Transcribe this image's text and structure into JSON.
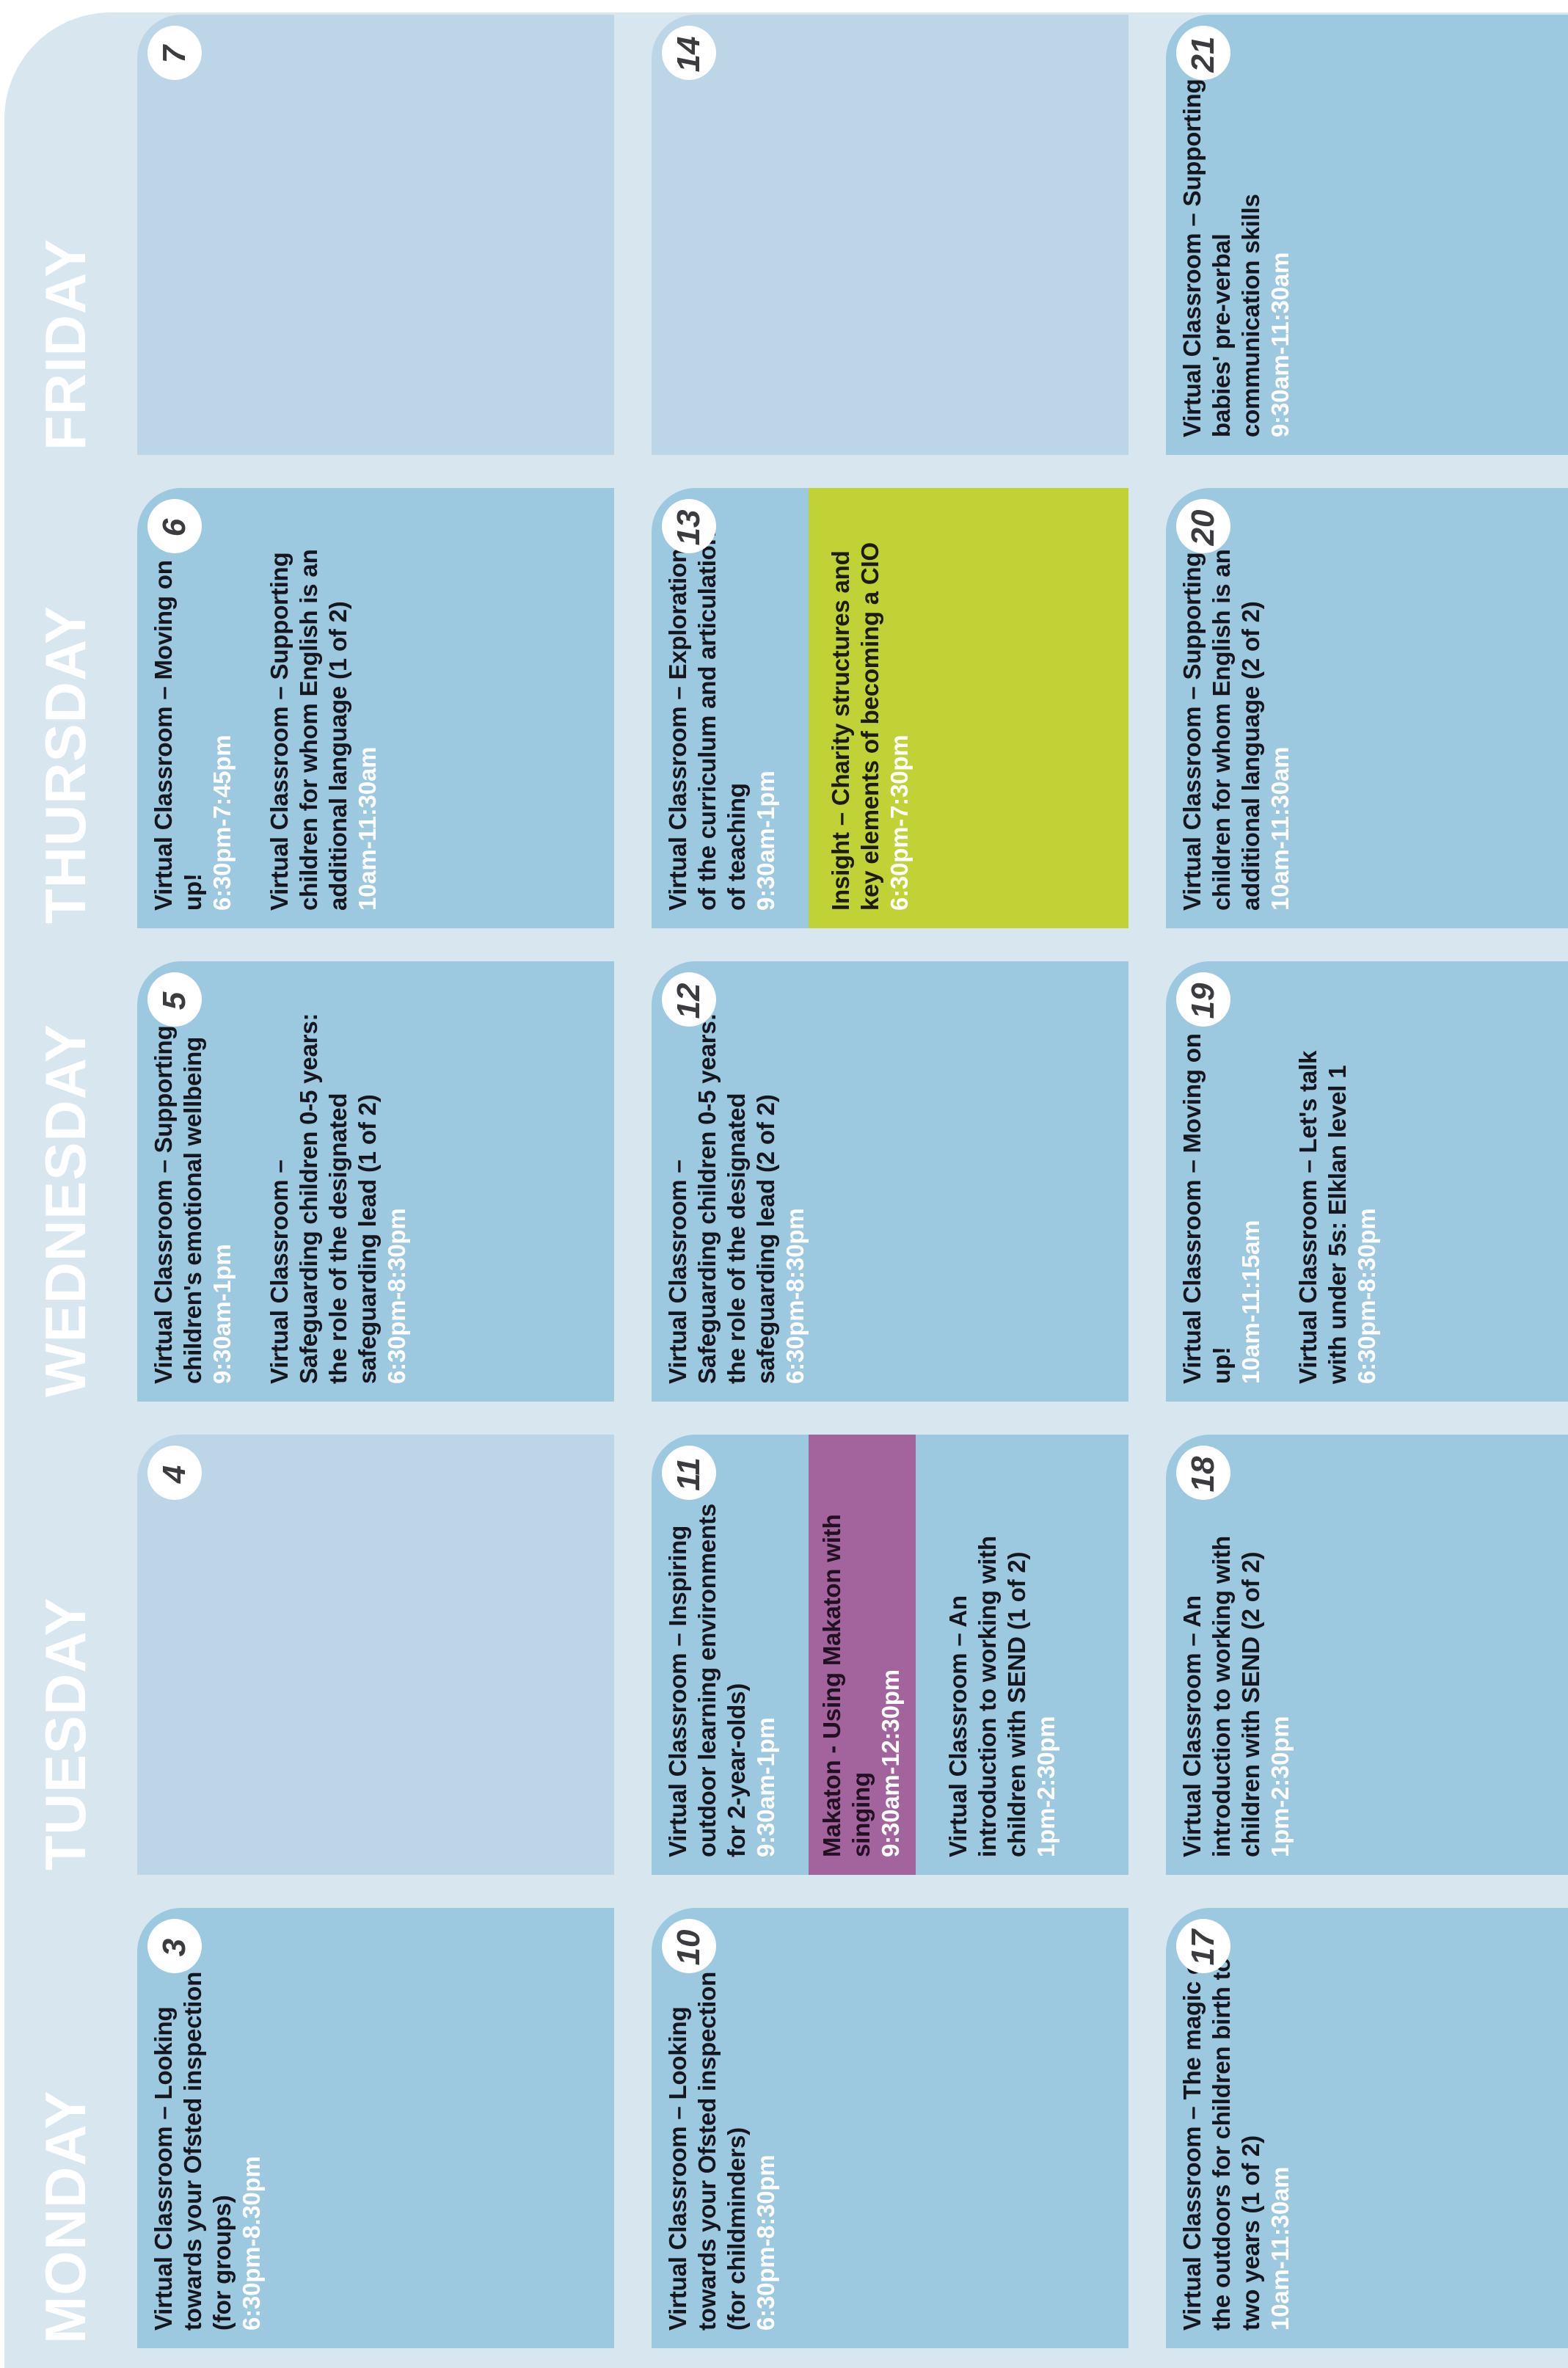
{
  "colors": {
    "page_bg": "#ffffff",
    "panel_bg": "#d8e6f0",
    "cell_bg": "#9cc8e0",
    "empty_cell_bg": "#bcd6e8",
    "highlight_purple": "#a3639d",
    "highlight_green": "#c0d236",
    "title_text": "#16161e",
    "time_text": "#ffffff",
    "day_label_text": "#ffffff",
    "badge_bg": "#ffffff",
    "badge_text": "#3b3b40"
  },
  "day_headers": [
    "MONDAY",
    "TUESDAY",
    "WEDNESDAY",
    "THURSDAY",
    "FRIDAY"
  ],
  "cells": [
    {
      "date": "3",
      "week": 0,
      "day": 0,
      "empty": false,
      "events": [
        {
          "title": "Virtual Classroom – Looking towards your Ofsted inspection (for groups)",
          "time": "6:30pm-8.30pm",
          "highlight": ""
        }
      ]
    },
    {
      "date": "4",
      "week": 0,
      "day": 1,
      "empty": true,
      "events": []
    },
    {
      "date": "5",
      "week": 0,
      "day": 2,
      "empty": false,
      "events": [
        {
          "title": "Virtual Classroom – Supporting children's emotional wellbeing",
          "time": "9:30am-1pm",
          "highlight": ""
        },
        {
          "title": "Virtual Classroom – Safeguarding children 0-5 years: the role of the designated safeguarding lead (1 of 2)",
          "time": "6:30pm-8:30pm",
          "highlight": ""
        }
      ]
    },
    {
      "date": "6",
      "week": 0,
      "day": 3,
      "empty": false,
      "events": [
        {
          "title": "Virtual Classroom – Moving on up!",
          "time": "6:30pm-7:45pm",
          "highlight": ""
        },
        {
          "title": "Virtual Classroom – Supporting children for whom English is an additional language (1 of 2)",
          "time": "10am-11:30am",
          "highlight": ""
        }
      ]
    },
    {
      "date": "7",
      "week": 0,
      "day": 4,
      "empty": true,
      "events": []
    },
    {
      "date": "10",
      "week": 1,
      "day": 0,
      "empty": false,
      "events": [
        {
          "title": "Virtual Classroom – Looking towards your Ofsted inspection (for childminders)",
          "time": "6:30pm-8:30pm",
          "highlight": ""
        }
      ]
    },
    {
      "date": "11",
      "week": 1,
      "day": 1,
      "empty": false,
      "events": [
        {
          "title": "Virtual Classroom – Inspiring outdoor learning environments for 2-year-olds)",
          "time": "9:30am-1pm",
          "highlight": ""
        },
        {
          "title": "Makaton - Using Makaton with singing",
          "time": "9:30am-12:30pm",
          "highlight": "purple"
        },
        {
          "title": "Virtual Classroom – An introduction to working with children with SEND (1 of 2)",
          "time": "1pm-2:30pm",
          "highlight": ""
        }
      ]
    },
    {
      "date": "12",
      "week": 1,
      "day": 2,
      "empty": false,
      "events": [
        {
          "title": "Virtual Classroom – Safeguarding children 0-5 years: the role of the designated safeguarding lead (2 of 2)",
          "time": "6:30pm-8:30pm",
          "highlight": ""
        }
      ]
    },
    {
      "date": "13",
      "week": 1,
      "day": 3,
      "empty": false,
      "events": [
        {
          "title": "Virtual Classroom – Exploration of the curriculum and articulation of teaching",
          "time": "9:30am-1pm",
          "highlight": ""
        },
        {
          "title": "Insight – Charity structures and key elements of becoming a CIO",
          "time": "6:30pm-7:30pm",
          "highlight": "green"
        }
      ]
    },
    {
      "date": "14",
      "week": 1,
      "day": 4,
      "empty": true,
      "events": []
    },
    {
      "date": "17",
      "week": 2,
      "day": 0,
      "empty": false,
      "events": [
        {
          "title": "Virtual Classroom – The magic of the outdoors for children birth to two years (1 of 2)",
          "time": "10am-11:30am",
          "highlight": ""
        }
      ]
    },
    {
      "date": "18",
      "week": 2,
      "day": 1,
      "empty": false,
      "events": [
        {
          "title": "Virtual Classroom – An introduction to working with children with SEND (2 of 2)",
          "time": "1pm-2:30pm",
          "highlight": ""
        }
      ]
    },
    {
      "date": "19",
      "week": 2,
      "day": 2,
      "empty": false,
      "events": [
        {
          "title": "Virtual Classroom – Moving on up!",
          "time": "10am-11:15am",
          "highlight": ""
        },
        {
          "title": "Virtual Classroom – Let's talk with under 5s: Elklan level 1",
          "time": "6:30pm-8:30pm",
          "highlight": ""
        }
      ]
    },
    {
      "date": "20",
      "week": 2,
      "day": 3,
      "empty": false,
      "events": [
        {
          "title": "Virtual Classroom – Supporting children for whom English is an additional language (2 of 2)",
          "time": "10am-11:30am",
          "highlight": ""
        }
      ]
    },
    {
      "date": "21",
      "week": 2,
      "day": 4,
      "empty": false,
      "events": [
        {
          "title": "Virtual Classroom – Supporting babies' pre-verbal communication skills",
          "time": "9:30am-11:30am",
          "highlight": ""
        }
      ]
    }
  ]
}
